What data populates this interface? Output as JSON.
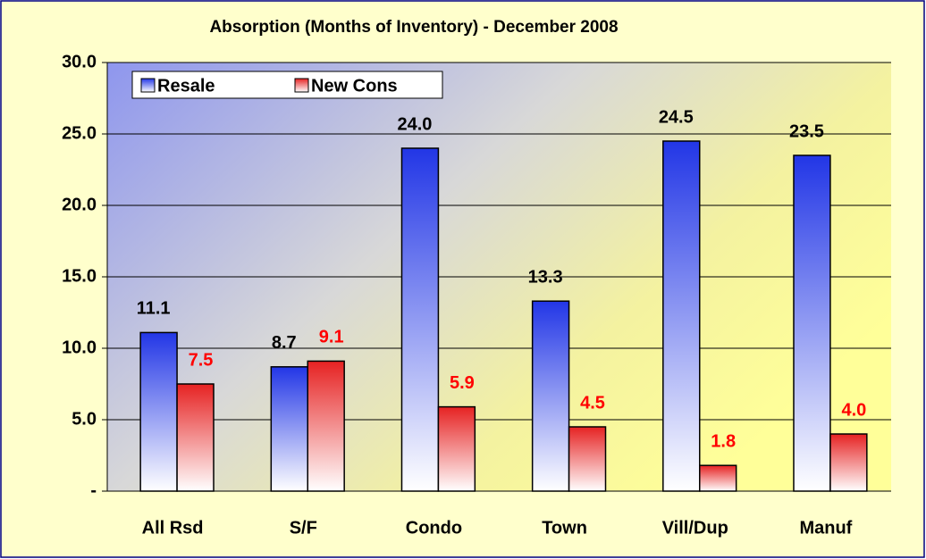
{
  "chart_data": {
    "type": "bar",
    "title": "Absorption (Months of Inventory) - December 2008",
    "categories": [
      "All Rsd",
      "S/F",
      "Condo",
      "Town",
      "Vill/Dup",
      "Manuf"
    ],
    "series": [
      {
        "name": "Resale",
        "color": "#2236e6",
        "label_color": "#000000",
        "values": [
          11.1,
          8.7,
          24.0,
          13.3,
          24.5,
          23.5
        ],
        "value_labels": [
          "11.1",
          "8.7",
          "24.0",
          "13.3",
          "24.5",
          "23.5"
        ]
      },
      {
        "name": "New Cons",
        "color": "#e62222",
        "label_color": "#ff0000",
        "values": [
          7.5,
          9.1,
          5.9,
          4.5,
          1.8,
          4.0
        ],
        "value_labels": [
          "7.5",
          "9.1",
          "5.9",
          "4.5",
          "1.8",
          "4.0"
        ]
      }
    ],
    "ylim": [
      0,
      30
    ],
    "yticks": [
      {
        "value": 0,
        "label": "-"
      },
      {
        "value": 5,
        "label": "5.0"
      },
      {
        "value": 10,
        "label": "10.0"
      },
      {
        "value": 15,
        "label": "15.0"
      },
      {
        "value": 20,
        "label": "20.0"
      },
      {
        "value": 25,
        "label": "25.0"
      },
      {
        "value": 30,
        "label": "30.0"
      }
    ],
    "grid": true
  }
}
